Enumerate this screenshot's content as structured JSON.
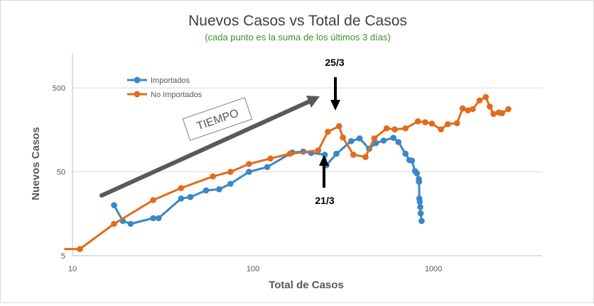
{
  "chart_data": {
    "type": "scatter",
    "title": "Nuevos Casos vs Total de Casos",
    "subtitle": "(cada punto es la suma de los últimos 3 días)",
    "xlabel": "Total de Casos",
    "ylabel": "Nuevos Casos",
    "xscale": "log",
    "yscale": "log",
    "xlim": [
      10,
      4000
    ],
    "ylim": [
      5,
      1300
    ],
    "xticks": [
      10,
      100,
      1000
    ],
    "yticks": [
      5,
      50,
      500
    ],
    "xtick_labels": [
      "10",
      "100",
      "1000"
    ],
    "ytick_labels": [
      "5",
      "50",
      "500"
    ],
    "grid": "horizontal",
    "legend": "top-left",
    "series": [
      {
        "name": "Importados",
        "color": "#3a87c6",
        "points": [
          [
            17,
            20
          ],
          [
            19,
            13
          ],
          [
            21,
            12
          ],
          [
            28,
            14
          ],
          [
            30,
            14
          ],
          [
            40,
            24
          ],
          [
            45,
            25
          ],
          [
            55,
            30
          ],
          [
            65,
            31
          ],
          [
            75,
            36
          ],
          [
            95,
            50
          ],
          [
            120,
            57
          ],
          [
            165,
            85
          ],
          [
            190,
            87
          ],
          [
            210,
            84
          ],
          [
            250,
            80
          ],
          [
            255,
            60
          ],
          [
            290,
            82
          ],
          [
            350,
            116
          ],
          [
            390,
            125
          ],
          [
            440,
            94
          ],
          [
            480,
            110
          ],
          [
            530,
            118
          ],
          [
            600,
            127
          ],
          [
            640,
            113
          ],
          [
            700,
            82
          ],
          [
            735,
            69
          ],
          [
            760,
            68
          ],
          [
            790,
            51
          ],
          [
            810,
            48
          ],
          [
            830,
            41
          ],
          [
            832,
            38
          ],
          [
            835,
            24
          ],
          [
            840,
            22
          ],
          [
            845,
            19
          ],
          [
            850,
            16
          ],
          [
            860,
            13
          ]
        ]
      },
      {
        "name": "No Importados",
        "color": "#e06c1c",
        "points": [
          [
            9,
            6
          ],
          [
            11,
            6
          ],
          [
            17,
            12
          ],
          [
            28,
            23
          ],
          [
            40,
            32
          ],
          [
            60,
            44
          ],
          [
            75,
            50
          ],
          [
            95,
            62
          ],
          [
            125,
            72
          ],
          [
            160,
            82
          ],
          [
            230,
            90
          ],
          [
            260,
            150
          ],
          [
            300,
            175
          ],
          [
            315,
            128
          ],
          [
            360,
            80
          ],
          [
            420,
            75
          ],
          [
            470,
            125
          ],
          [
            550,
            165
          ],
          [
            610,
            160
          ],
          [
            700,
            165
          ],
          [
            820,
            200
          ],
          [
            900,
            195
          ],
          [
            980,
            188
          ],
          [
            1100,
            160
          ],
          [
            1200,
            185
          ],
          [
            1350,
            190
          ],
          [
            1450,
            285
          ],
          [
            1550,
            270
          ],
          [
            1650,
            280
          ],
          [
            1800,
            355
          ],
          [
            1950,
            390
          ],
          [
            2050,
            300
          ],
          [
            2150,
            245
          ],
          [
            2300,
            255
          ],
          [
            2400,
            250
          ],
          [
            2600,
            280
          ]
        ]
      }
    ],
    "annotations": [
      {
        "text": "TIEMPO",
        "kind": "tilted-box"
      },
      {
        "text": "25/3",
        "kind": "arrow-down",
        "x": 260,
        "y": 150
      },
      {
        "text": "21/3",
        "kind": "arrow-up",
        "x": 205,
        "y": 80
      }
    ]
  }
}
